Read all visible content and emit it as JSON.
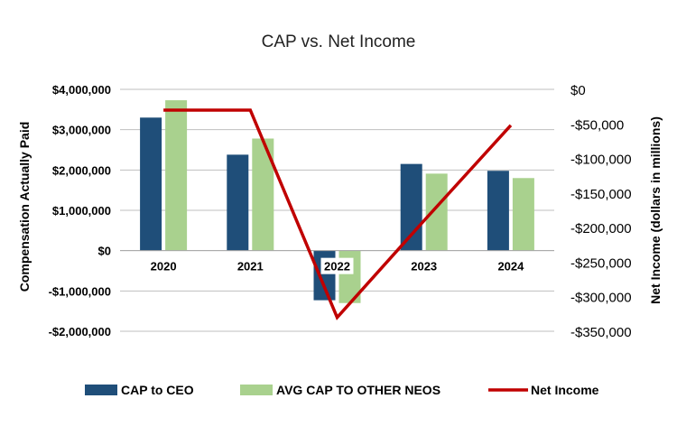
{
  "chart_data": {
    "type": "bar",
    "title": "CAP vs. Net Income",
    "categories": [
      "2020",
      "2021",
      "2022",
      "2023",
      "2024"
    ],
    "series": [
      {
        "name": "CAP to CEO",
        "kind": "bar",
        "axis": "left",
        "color": "#1f4e79",
        "values": [
          3300000,
          2380000,
          -1230000,
          2150000,
          1980000
        ]
      },
      {
        "name": "AVG CAP TO OTHER NEOS",
        "kind": "bar",
        "axis": "left",
        "color": "#a9d18e",
        "values": [
          3730000,
          2780000,
          -1300000,
          1910000,
          1800000
        ]
      },
      {
        "name": "Net Income",
        "kind": "line",
        "axis": "right",
        "color": "#c00000",
        "values": [
          -30000,
          -30000,
          -330000,
          -190000,
          -52000
        ]
      }
    ],
    "left_axis": {
      "label": "Compensation Actually Paid",
      "ylim": [
        -2000000,
        4000000
      ],
      "ticks": [
        4000000,
        3000000,
        2000000,
        1000000,
        0,
        -1000000,
        -2000000
      ],
      "tick_labels": [
        "$4,000,000",
        "$3,000,000",
        "$2,000,000",
        "$1,000,000",
        "$0",
        "-$1,000,000",
        "-$2,000,000"
      ]
    },
    "right_axis": {
      "label": "Net Income (dollars in millions)",
      "ylim": [
        -350000,
        0
      ],
      "ticks": [
        0,
        -50000,
        -100000,
        -150000,
        -200000,
        -250000,
        -300000,
        -350000
      ],
      "tick_labels": [
        "$0",
        "-$50,000",
        "-$100,000",
        "-$150,000",
        "-$200,000",
        "-$250,000",
        "-$300,000",
        "-$350,000"
      ]
    },
    "grid": true,
    "legend": "bottom"
  }
}
